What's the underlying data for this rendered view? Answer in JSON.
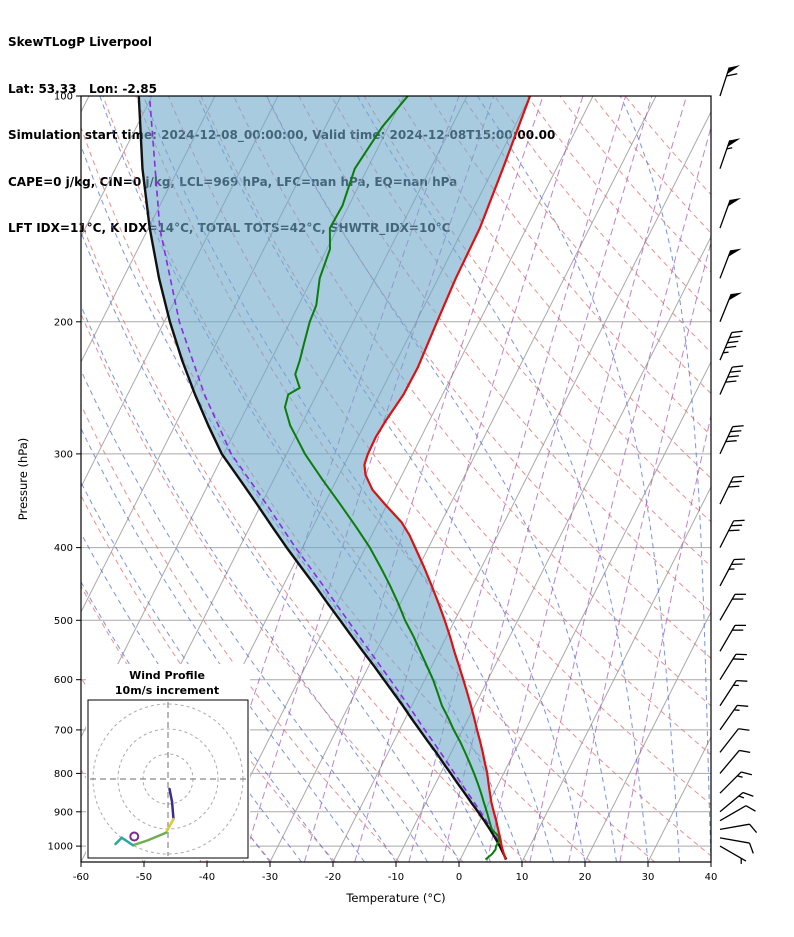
{
  "header": {
    "title": "SkewTLogP Liverpool",
    "location": "Lat: 53.33   Lon: -2.85",
    "times": "Simulation start time: 2024-12-08_00:00:00, Valid time: 2024-12-08T15:00:00.00",
    "indices1": "CAPE=0 j/kg, CIN=0 j/kg, LCL=969 hPa, LFC=nan hPa, EQ=nan hPa",
    "indices2": "LFT IDX=11°C, K IDX=14°C, TOTAL TOTS=42°C, SHWTR_IDX=10°C"
  },
  "chart_data": {
    "type": "line",
    "title": "SkewTLogP Liverpool",
    "xlabel": "Temperature (°C)",
    "ylabel": "Pressure (hPa)",
    "x_range": [
      -60,
      40
    ],
    "x_ticks": [
      -60,
      -50,
      -40,
      -30,
      -20,
      -10,
      0,
      10,
      20,
      30,
      40
    ],
    "p_range": [
      100,
      1050
    ],
    "p_ticks": [
      100,
      200,
      300,
      400,
      500,
      600,
      700,
      800,
      900,
      1000
    ],
    "skew_deg_per_decade": 60,
    "background_lines": {
      "isotherms": {
        "color": "#a9a9a9",
        "start": -130,
        "end": 40,
        "step": 10
      },
      "isobars": {
        "color": "#a9a9a9",
        "levels": [
          100,
          200,
          300,
          400,
          500,
          600,
          700,
          800,
          900,
          1000
        ]
      },
      "dry_adiabats": {
        "color": "#e57373",
        "theta_start": 210,
        "theta_end": 460,
        "step": 10
      },
      "moist_adiabats": {
        "color": "#4f6fd8",
        "t0_start": -30,
        "t0_end": 45,
        "step": 5
      },
      "mixing_ratio": {
        "color": "#a050b0",
        "values_g_kg": [
          0.1,
          0.2,
          0.5,
          1,
          2,
          3,
          5,
          8,
          12,
          20
        ]
      }
    },
    "shading": {
      "between": [
        "parcel",
        "temperature"
      ],
      "color": "#6fa8c9",
      "opacity": 0.6
    },
    "series": [
      {
        "name": "temperature",
        "color": "#dd1111",
        "style": "solid",
        "width": 2.2,
        "points": [
          [
            1042,
            7.2
          ],
          [
            1020,
            6.3
          ],
          [
            1000,
            5.5
          ],
          [
            975,
            4.6
          ],
          [
            950,
            3.6
          ],
          [
            925,
            2.6
          ],
          [
            900,
            1.5
          ],
          [
            875,
            0.4
          ],
          [
            850,
            -0.6
          ],
          [
            825,
            -1.6
          ],
          [
            800,
            -2.6
          ],
          [
            775,
            -3.8
          ],
          [
            750,
            -5.0
          ],
          [
            725,
            -6.3
          ],
          [
            700,
            -7.7
          ],
          [
            675,
            -9.1
          ],
          [
            650,
            -10.6
          ],
          [
            625,
            -12.2
          ],
          [
            600,
            -13.9
          ],
          [
            575,
            -15.7
          ],
          [
            550,
            -17.6
          ],
          [
            525,
            -19.5
          ],
          [
            500,
            -21.6
          ],
          [
            475,
            -23.9
          ],
          [
            450,
            -26.4
          ],
          [
            425,
            -29.1
          ],
          [
            400,
            -32.1
          ],
          [
            385,
            -34.0
          ],
          [
            370,
            -36.3
          ],
          [
            350,
            -40.4
          ],
          [
            335,
            -43.5
          ],
          [
            320,
            -45.8
          ],
          [
            310,
            -46.8
          ],
          [
            300,
            -47.1
          ],
          [
            285,
            -47.2
          ],
          [
            270,
            -46.9
          ],
          [
            250,
            -46.2
          ],
          [
            230,
            -46.1
          ],
          [
            200,
            -46.7
          ],
          [
            175,
            -47.2
          ],
          [
            150,
            -47.4
          ],
          [
            125,
            -48.5
          ],
          [
            100,
            -50.0
          ]
        ]
      },
      {
        "name": "dewpoint",
        "color": "#0a7d0a",
        "style": "solid",
        "width": 2.0,
        "points": [
          [
            1042,
            4.0
          ],
          [
            1025,
            4.6
          ],
          [
            1010,
            4.8
          ],
          [
            1000,
            4.6
          ],
          [
            985,
            4.7
          ],
          [
            970,
            4.2
          ],
          [
            950,
            2.6
          ],
          [
            925,
            1.5
          ],
          [
            900,
            0.4
          ],
          [
            875,
            -0.8
          ],
          [
            850,
            -2.0
          ],
          [
            825,
            -3.3
          ],
          [
            800,
            -4.7
          ],
          [
            775,
            -6.2
          ],
          [
            750,
            -7.8
          ],
          [
            725,
            -9.5
          ],
          [
            700,
            -11.4
          ],
          [
            675,
            -13.2
          ],
          [
            650,
            -15.2
          ],
          [
            625,
            -16.9
          ],
          [
            600,
            -18.7
          ],
          [
            575,
            -20.8
          ],
          [
            550,
            -23.0
          ],
          [
            525,
            -25.3
          ],
          [
            500,
            -27.9
          ],
          [
            475,
            -30.3
          ],
          [
            450,
            -33.0
          ],
          [
            425,
            -36.0
          ],
          [
            400,
            -39.3
          ],
          [
            375,
            -43.2
          ],
          [
            350,
            -47.5
          ],
          [
            325,
            -52.2
          ],
          [
            300,
            -57.1
          ],
          [
            285,
            -59.8
          ],
          [
            275,
            -61.7
          ],
          [
            260,
            -64.0
          ],
          [
            250,
            -64.5
          ],
          [
            245,
            -63.2
          ],
          [
            235,
            -65.0
          ],
          [
            225,
            -65.4
          ],
          [
            215,
            -66.0
          ],
          [
            200,
            -66.9
          ],
          [
            190,
            -67.2
          ],
          [
            175,
            -68.8
          ],
          [
            160,
            -69.5
          ],
          [
            150,
            -71.2
          ],
          [
            140,
            -71.0
          ],
          [
            125,
            -72.0
          ],
          [
            110,
            -71.0
          ],
          [
            100,
            -69.4
          ]
        ]
      },
      {
        "name": "parcel",
        "color": "#111111",
        "style": "solid",
        "width": 2.4,
        "points": [
          [
            1042,
            7.3
          ],
          [
            1020,
            6.2
          ],
          [
            1000,
            5.2
          ],
          [
            975,
            3.8
          ],
          [
            950,
            2.3
          ],
          [
            925,
            0.7
          ],
          [
            900,
            -1.0
          ],
          [
            875,
            -2.8
          ],
          [
            850,
            -4.6
          ],
          [
            825,
            -6.5
          ],
          [
            800,
            -8.4
          ],
          [
            775,
            -10.4
          ],
          [
            750,
            -12.4
          ],
          [
            725,
            -14.6
          ],
          [
            700,
            -16.8
          ],
          [
            675,
            -19.1
          ],
          [
            650,
            -21.4
          ],
          [
            625,
            -23.9
          ],
          [
            600,
            -26.5
          ],
          [
            575,
            -29.2
          ],
          [
            550,
            -32.1
          ],
          [
            525,
            -35.1
          ],
          [
            500,
            -38.2
          ],
          [
            475,
            -41.5
          ],
          [
            450,
            -44.9
          ],
          [
            425,
            -48.6
          ],
          [
            400,
            -52.5
          ],
          [
            375,
            -56.5
          ],
          [
            350,
            -60.7
          ],
          [
            325,
            -65.3
          ],
          [
            300,
            -70.3
          ],
          [
            275,
            -74.7
          ],
          [
            250,
            -79.3
          ],
          [
            225,
            -84.1
          ],
          [
            200,
            -89.1
          ],
          [
            175,
            -94.3
          ],
          [
            150,
            -99.8
          ],
          [
            125,
            -105.7
          ],
          [
            100,
            -112.1
          ]
        ]
      },
      {
        "name": "parcel-dashed",
        "color": "#8a2be2",
        "style": "dashed",
        "width": 1.6,
        "points": [
          [
            1042,
            7.3
          ],
          [
            1000,
            5.4
          ],
          [
            950,
            2.6
          ],
          [
            900,
            -0.6
          ],
          [
            850,
            -4.1
          ],
          [
            800,
            -7.8
          ],
          [
            750,
            -11.7
          ],
          [
            700,
            -16.0
          ],
          [
            650,
            -20.5
          ],
          [
            600,
            -25.5
          ],
          [
            550,
            -31.0
          ],
          [
            500,
            -37.0
          ],
          [
            450,
            -43.6
          ],
          [
            400,
            -51.1
          ],
          [
            350,
            -59.2
          ],
          [
            300,
            -68.8
          ],
          [
            250,
            -77.8
          ],
          [
            200,
            -87.6
          ],
          [
            150,
            -98.2
          ],
          [
            100,
            -110.4
          ]
        ]
      }
    ],
    "wind_barbs": [
      [
        1000,
        5,
        120
      ],
      [
        975,
        8,
        100
      ],
      [
        950,
        10,
        80
      ],
      [
        925,
        12,
        60
      ],
      [
        900,
        15,
        50
      ],
      [
        850,
        15,
        45
      ],
      [
        800,
        12,
        40
      ],
      [
        750,
        12,
        38
      ],
      [
        700,
        15,
        35
      ],
      [
        650,
        15,
        33
      ],
      [
        600,
        18,
        32
      ],
      [
        550,
        20,
        30
      ],
      [
        500,
        22,
        30
      ],
      [
        450,
        25,
        28
      ],
      [
        400,
        28,
        27
      ],
      [
        350,
        32,
        26
      ],
      [
        300,
        38,
        25
      ],
      [
        250,
        42,
        24
      ],
      [
        225,
        45,
        23
      ],
      [
        200,
        48,
        22
      ],
      [
        175,
        50,
        21
      ],
      [
        150,
        52,
        20
      ],
      [
        125,
        55,
        19
      ],
      [
        100,
        58,
        18
      ]
    ]
  },
  "inset": {
    "title": "Wind Profile",
    "subtitle": "10m/s increment",
    "ring_interval_ms": 10,
    "rings": [
      10,
      20,
      30
    ],
    "trace": [
      {
        "color": "#3b2d8f",
        "points": [
          [
            0.6,
            -4
          ],
          [
            1.6,
            -9
          ],
          [
            2.2,
            -16
          ]
        ]
      },
      {
        "color": "#d8c93f",
        "points": [
          [
            2.2,
            -16
          ],
          [
            -0.8,
            -21.5
          ]
        ]
      },
      {
        "color": "#6fae4e",
        "points": [
          [
            -0.8,
            -21.5
          ],
          [
            -8,
            -24.5
          ],
          [
            -14,
            -26.5
          ]
        ]
      },
      {
        "color": "#2aa8a0",
        "points": [
          [
            -14,
            -26.5
          ],
          [
            -18.5,
            -23.5
          ],
          [
            -21,
            -26
          ]
        ]
      }
    ],
    "marker": {
      "u": -13.5,
      "v": -23,
      "color": "#7b2d8f"
    }
  }
}
